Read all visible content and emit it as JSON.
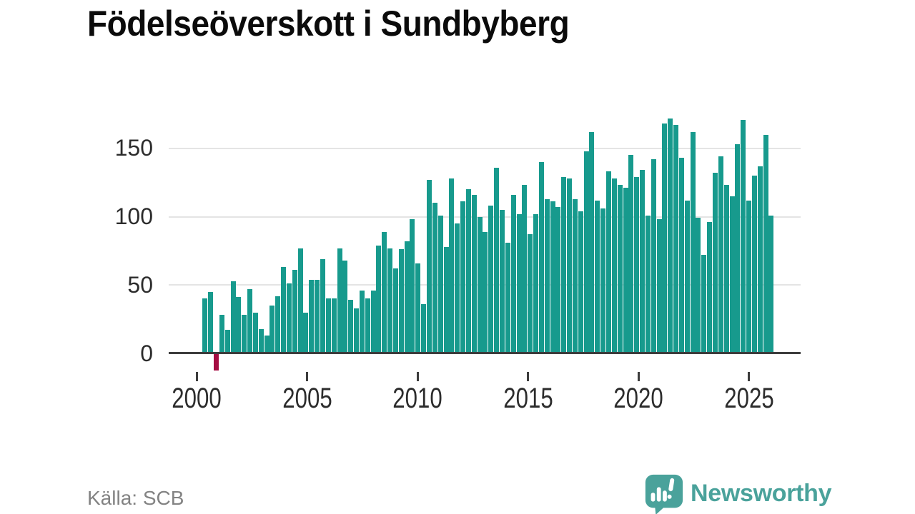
{
  "title": "Födelseöverskott i Sundbyberg",
  "source": "Källa: SCB",
  "branding": {
    "logo_text": "Newsworthy",
    "logo_icon": "speech-bubble-with-bar-chart-and-exclamation"
  },
  "colors": {
    "bar_positive": "#179a8d",
    "bar_negative": "#a50d42",
    "axis_line": "#3d3d3d",
    "gridline": "#e4e4e4",
    "axis_label": "#2c2c2c",
    "title_text": "#0b0b0b",
    "source_text": "#838383",
    "brand_teal": "#4aa29b",
    "background": "#ffffff"
  },
  "chart_data": {
    "type": "bar",
    "title": "Födelseöverskott i Sundbyberg",
    "frequency": "quarterly",
    "x_start_year": 2000,
    "x_tick_labels": [
      "2000",
      "2005",
      "2010",
      "2015",
      "2020",
      "2025"
    ],
    "y_ticks": [
      0,
      50,
      100,
      150
    ],
    "y_gridlines": [
      50,
      100,
      150
    ],
    "ylim": [
      -20,
      175
    ],
    "grid": true,
    "legend": "none",
    "negative_values_highlighted": true,
    "values": [
      40,
      45,
      -12,
      28,
      17,
      53,
      41,
      28,
      47,
      30,
      18,
      13,
      35,
      42,
      63,
      51,
      61,
      77,
      30,
      54,
      54,
      69,
      40,
      40,
      77,
      68,
      39,
      33,
      46,
      40,
      46,
      79,
      89,
      77,
      62,
      76,
      82,
      98,
      66,
      36,
      127,
      110,
      101,
      78,
      128,
      95,
      111,
      120,
      116,
      100,
      89,
      108,
      136,
      105,
      81,
      116,
      102,
      123,
      87,
      102,
      140,
      113,
      111,
      107,
      129,
      128,
      113,
      104,
      148,
      162,
      112,
      106,
      133,
      128,
      123,
      121,
      145,
      129,
      134,
      101,
      142,
      98,
      168,
      172,
      167,
      143,
      112,
      162,
      99,
      72,
      96,
      132,
      144,
      123,
      115,
      153,
      171,
      112,
      130,
      137,
      160,
      101
    ]
  }
}
